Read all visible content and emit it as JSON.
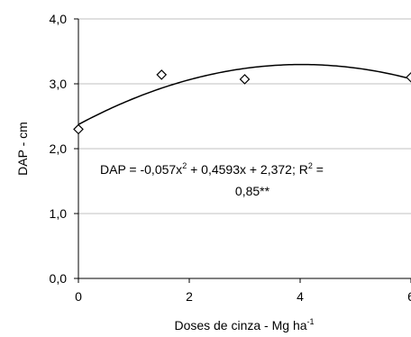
{
  "chart_data": {
    "type": "scatter",
    "xlabel": "Doses de cinza - Mg ha",
    "xlabel_sup": "-1",
    "ylabel": "DAP - cm",
    "xlim": [
      0,
      6
    ],
    "ylim": [
      0,
      4
    ],
    "x_ticks": [
      0,
      2,
      4,
      6
    ],
    "x_tick_labels": [
      "0",
      "2",
      "4",
      "6"
    ],
    "y_ticks": [
      0,
      1,
      2,
      3,
      4
    ],
    "y_tick_labels": [
      "0,0",
      "1,0",
      "2,0",
      "3,0",
      "4,0"
    ],
    "grid": "horizontal",
    "series": [
      {
        "type": "scatter",
        "marker": "diamond",
        "x": [
          0,
          1.5,
          3,
          6
        ],
        "y": [
          2.3,
          3.14,
          3.07,
          3.1
        ]
      },
      {
        "type": "line",
        "fit": "quadratic",
        "coefficients": {
          "a": -0.057,
          "b": 0.4593,
          "c": 2.372
        }
      }
    ],
    "annotation": {
      "line1_pre": "DAP = -0,057x",
      "line1_sup": "2",
      "line1_mid": " + 0,4593x + 2,372; R",
      "line1_sup2": "2",
      "line1_post": " =",
      "line2": "0,85**"
    },
    "colors": {
      "line": "#000000",
      "grid": "#c0c0c0",
      "axis": "#000000"
    }
  }
}
